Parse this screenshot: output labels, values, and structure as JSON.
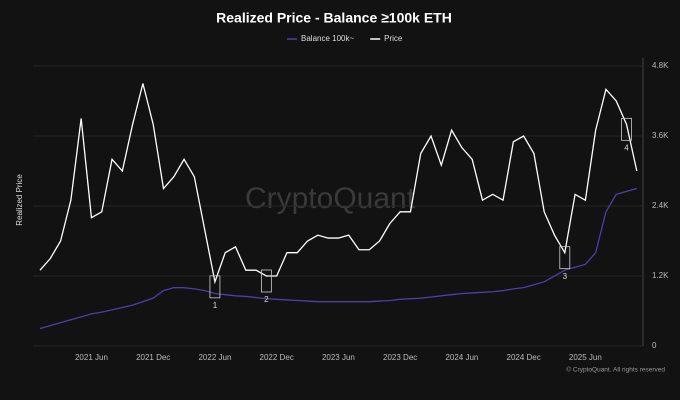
{
  "chart_data": {
    "type": "line",
    "title": "Realized Price - Balance ≥100k ETH",
    "y_label": "Realized Price",
    "watermark": "CryptoQuant",
    "footer": "© CryptoQuant. All rights reserved",
    "categories": [
      null,
      null,
      null,
      null,
      null,
      "2021 Jun",
      null,
      null,
      null,
      null,
      null,
      "2021 Dec",
      null,
      null,
      null,
      null,
      null,
      "2022 Jun",
      null,
      null,
      null,
      null,
      null,
      "2022 Dec",
      null,
      null,
      null,
      null,
      null,
      "2023 Jun",
      null,
      null,
      null,
      null,
      null,
      "2023 Dec",
      null,
      null,
      null,
      null,
      null,
      "2024 Jun",
      null,
      null,
      null,
      null,
      null,
      "2024 Dec",
      null,
      null,
      null,
      null,
      null,
      "2025 Jun",
      null,
      null,
      null,
      null,
      null
    ],
    "series": [
      {
        "name": "Balance 100k~",
        "color": "#4b3fa8",
        "values": [
          300,
          350,
          400,
          450,
          500,
          550,
          580,
          620,
          660,
          700,
          760,
          820,
          950,
          1000,
          1000,
          980,
          950,
          900,
          880,
          860,
          850,
          830,
          810,
          800,
          790,
          780,
          770,
          760,
          760,
          760,
          760,
          760,
          760,
          770,
          780,
          800,
          810,
          820,
          840,
          860,
          880,
          900,
          910,
          920,
          930,
          950,
          980,
          1000,
          1050,
          1100,
          1200,
          1300,
          1350,
          1400,
          1600,
          2300,
          2600,
          2650,
          2700
        ]
      },
      {
        "name": "Price",
        "color": "#ffffff",
        "values": [
          1300,
          1500,
          1800,
          2500,
          3900,
          2200,
          2300,
          3200,
          3000,
          3800,
          4500,
          3800,
          2700,
          2900,
          3200,
          2900,
          2000,
          1100,
          1600,
          1700,
          1300,
          1300,
          1200,
          1200,
          1600,
          1600,
          1800,
          1900,
          1850,
          1850,
          1900,
          1650,
          1650,
          1800,
          2100,
          2300,
          2300,
          3300,
          3600,
          3100,
          3700,
          3400,
          3200,
          2500,
          2600,
          2500,
          3500,
          3600,
          3300,
          2300,
          1900,
          1600,
          2600,
          2500,
          3700,
          4400,
          4200,
          3800,
          3000
        ]
      }
    ],
    "annotations": [
      "1",
      "2",
      "3",
      "4"
    ],
    "ylim": [
      0,
      4800
    ],
    "yticks": [
      0,
      {
        "value": 1200,
        "label": "1.2K"
      },
      {
        "value": 2400,
        "label": "2.4K"
      },
      {
        "value": 3600,
        "label": "3.6K"
      },
      {
        "value": 4800,
        "label": "4.8K"
      }
    ],
    "grid": true,
    "legend": "top"
  }
}
